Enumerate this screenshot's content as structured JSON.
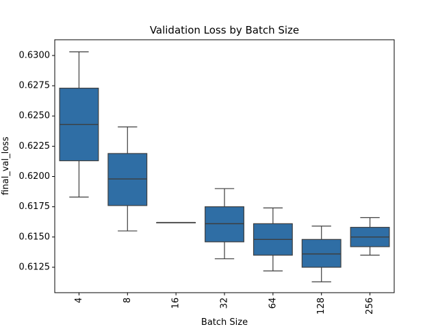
{
  "chart_data": {
    "type": "box",
    "title": "Validation Loss by Batch Size",
    "xlabel": "Batch Size",
    "ylabel": "final_val_loss",
    "ylim": [
      0.6104,
      0.6313
    ],
    "yticks": [
      "0.6125",
      "0.6150",
      "0.6175",
      "0.6200",
      "0.6225",
      "0.6250",
      "0.6275",
      "0.6300"
    ],
    "categories": [
      "4",
      "8",
      "16",
      "32",
      "64",
      "128",
      "256"
    ],
    "boxes": [
      {
        "category": "4",
        "whisker_low": 0.6183,
        "q1": 0.6213,
        "median": 0.6243,
        "q3": 0.6273,
        "whisker_high": 0.6303
      },
      {
        "category": "8",
        "whisker_low": 0.6155,
        "q1": 0.6176,
        "median": 0.6198,
        "q3": 0.6219,
        "whisker_high": 0.6241
      },
      {
        "category": "16",
        "whisker_low": 0.6162,
        "q1": 0.6162,
        "median": 0.6162,
        "q3": 0.6162,
        "whisker_high": 0.6162
      },
      {
        "category": "32",
        "whisker_low": 0.6132,
        "q1": 0.6146,
        "median": 0.6161,
        "q3": 0.6175,
        "whisker_high": 0.619
      },
      {
        "category": "64",
        "whisker_low": 0.6122,
        "q1": 0.6135,
        "median": 0.6148,
        "q3": 0.6161,
        "whisker_high": 0.6174
      },
      {
        "category": "128",
        "whisker_low": 0.6113,
        "q1": 0.6125,
        "median": 0.6136,
        "q3": 0.6148,
        "whisker_high": 0.6159
      },
      {
        "category": "256",
        "whisker_low": 0.6135,
        "q1": 0.6142,
        "median": 0.615,
        "q3": 0.6158,
        "whisker_high": 0.6166
      }
    ],
    "colors": {
      "box_fill": "#2f6ea5",
      "line": "#3d3d3d",
      "axis": "#000000"
    },
    "grid": false,
    "x_tick_rotation": "vertical"
  }
}
